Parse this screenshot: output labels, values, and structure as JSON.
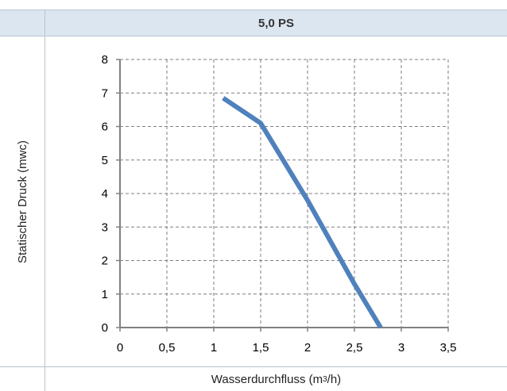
{
  "chart_data": {
    "type": "line",
    "title": "5,0 PS",
    "ylabel": "Statischer Druck (mwc)",
    "xlabel_main": "Wasserdurchfluss (m",
    "xlabel_sup": "3",
    "xlabel_end": "/h)",
    "xlim": [
      0,
      3.5
    ],
    "ylim": [
      0,
      8
    ],
    "x_ticks": [
      0,
      0.5,
      1,
      1.5,
      2,
      2.5,
      3,
      3.5
    ],
    "x_tick_labels": [
      "0",
      "0,5",
      "1",
      "1,5",
      "2",
      "2,5",
      "3",
      "3,5"
    ],
    "y_ticks": [
      0,
      1,
      2,
      3,
      4,
      5,
      6,
      7,
      8
    ],
    "y_tick_labels": [
      "0",
      "1",
      "2",
      "3",
      "4",
      "5",
      "6",
      "7",
      "8"
    ],
    "grid": true,
    "series": [
      {
        "color": "#4f81bd",
        "x": [
          1.1,
          1.5,
          2.0,
          2.5,
          2.78
        ],
        "y": [
          6.85,
          6.1,
          3.8,
          1.3,
          0.0
        ]
      }
    ]
  }
}
